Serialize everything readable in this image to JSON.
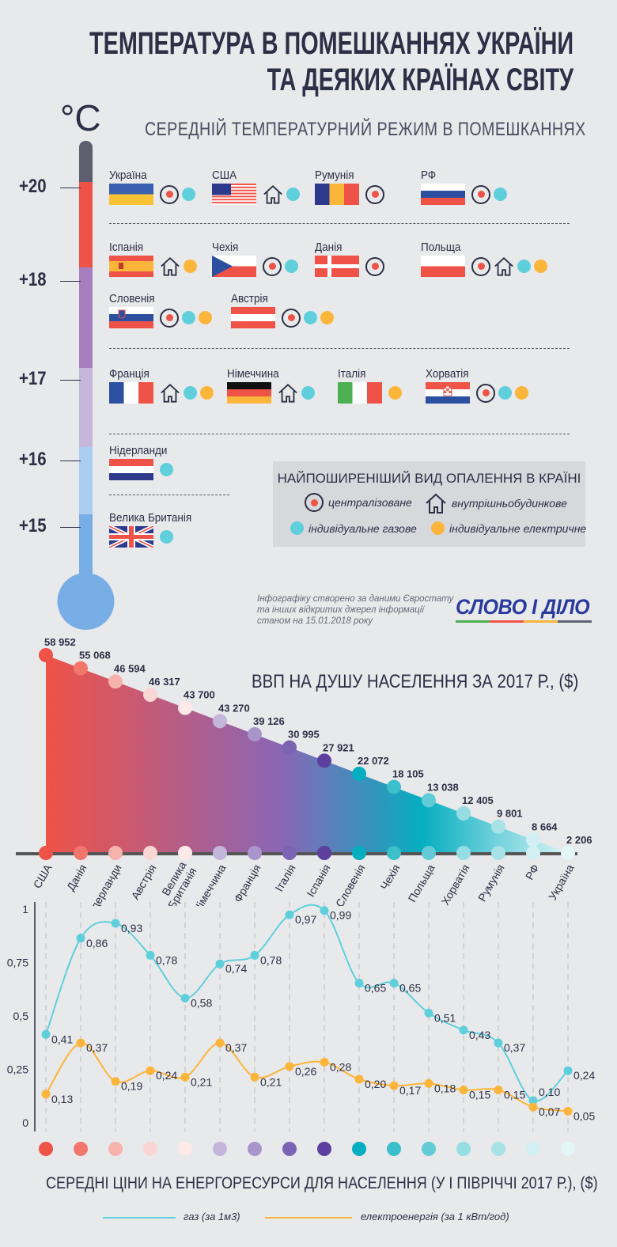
{
  "title": {
    "line1": "ТЕМПЕРАТУРА В ПОМЕШКАННЯХ УКРАЇНИ",
    "line2": "ТА ДЕЯКИХ КРАЇНАХ СВІТУ"
  },
  "unit": "°C",
  "subtitle": "СЕРЕДНІЙ ТЕМПЕРАТУРНИЙ РЕЖИМ В ПОМЕШКАННЯХ",
  "temperature_levels": [
    "+20",
    "+18",
    "+17",
    "+16",
    "+15"
  ],
  "countries": [
    {
      "name": "Україна",
      "flag": "ua",
      "level": "+20",
      "heating": [
        "central",
        "gas"
      ]
    },
    {
      "name": "США",
      "flag": "us",
      "level": "+20",
      "heating": [
        "house",
        "gas"
      ]
    },
    {
      "name": "Румунія",
      "flag": "ro",
      "level": "+20",
      "heating": [
        "central"
      ]
    },
    {
      "name": "РФ",
      "flag": "ru",
      "level": "+20",
      "heating": [
        "central",
        "gas"
      ]
    },
    {
      "name": "Іспанія",
      "flag": "es",
      "level": "+18",
      "heating": [
        "house",
        "electric"
      ]
    },
    {
      "name": "Чехія",
      "flag": "cz",
      "level": "+18",
      "heating": [
        "central",
        "gas"
      ]
    },
    {
      "name": "Данія",
      "flag": "dk",
      "level": "+18",
      "heating": [
        "central"
      ]
    },
    {
      "name": "Польща",
      "flag": "pl",
      "level": "+18",
      "heating": [
        "central",
        "house",
        "gas",
        "electric"
      ]
    },
    {
      "name": "Словенія",
      "flag": "si",
      "level": "+18",
      "heating": [
        "central",
        "gas",
        "electric"
      ]
    },
    {
      "name": "Австрія",
      "flag": "at",
      "level": "+18",
      "heating": [
        "central",
        "gas",
        "electric"
      ]
    },
    {
      "name": "Франція",
      "flag": "fr",
      "level": "+17",
      "heating": [
        "house",
        "gas",
        "electric"
      ]
    },
    {
      "name": "Німеччина",
      "flag": "de",
      "level": "+17",
      "heating": [
        "house",
        "gas"
      ]
    },
    {
      "name": "Італія",
      "flag": "it",
      "level": "+17",
      "heating": [
        "electric"
      ]
    },
    {
      "name": "Хорватія",
      "flag": "hr",
      "level": "+17",
      "heating": [
        "central",
        "gas",
        "electric"
      ]
    },
    {
      "name": "Нідерланди",
      "flag": "nl",
      "level": "+16",
      "heating": [
        "gas"
      ]
    },
    {
      "name": "Велика Британія",
      "flag": "gb",
      "level": "+15",
      "heating": [
        "gas"
      ]
    }
  ],
  "legend": {
    "title": "НАЙПОШИРЕНІШИЙ ВИД ОПАЛЕННЯ В КРАЇНІ",
    "central": "централізоване",
    "house": "внутрішньобудинкове",
    "gas": "індивідуальне газове",
    "electric": "індивідуальне електричне"
  },
  "note": {
    "line1": "Інфографіку створено за даними Євростату",
    "line2": "та інших відкритих джерел інформації",
    "line3": "станом на 15.01.2018 року"
  },
  "logo": "СЛОВО І ДІЛО",
  "colors": {
    "central": "#ef5247",
    "gas": "#5fcfdc",
    "electric": "#fbb53a",
    "navy": "#2c2f45",
    "logo": "#2a3a9c"
  },
  "chart_data": [
    {
      "type": "area",
      "title": "ВВП НА ДУШУ НАСЕЛЕННЯ ЗА 2017 Р., ($)",
      "categories": [
        "США",
        "Данія",
        "Нідерланди",
        "Австрія",
        "Велика Британія",
        "Німеччина",
        "Франція",
        "Італія",
        "Іспанія",
        "Словенія",
        "Чехія",
        "Польща",
        "Хорватія",
        "Румунія",
        "РФ",
        "Україна"
      ],
      "value_labels": [
        "58 952",
        "55 068",
        "46 594",
        "46 317",
        "43 700",
        "43 270",
        "39 126",
        "30 995",
        "27 921",
        "22 072",
        "18 105",
        "13  038",
        "12 405",
        "9 801",
        "8 664",
        "2 206"
      ],
      "values": [
        58952,
        55068,
        46594,
        46317,
        43700,
        43270,
        39126,
        30995,
        27921,
        22072,
        18105,
        13038,
        12405,
        9801,
        8664,
        2206
      ],
      "dot_colors": [
        "#ef5247",
        "#f2766b",
        "#f6b2ad",
        "#f9d6d4",
        "#fde9e8",
        "#c4b5dc",
        "#a995cc",
        "#7d63b3",
        "#5d3f9f",
        "#05aec0",
        "#3bbfca",
        "#62cbd6",
        "#95dde3",
        "#a7e2e7",
        "#d2f0f3",
        "#e4f5f7"
      ]
    },
    {
      "type": "line",
      "title": "СЕРЕДНІ ЦІНИ НА ЕНЕРГОРЕСУРСИ ДЛЯ НАСЕЛЕННЯ (У І ПІВРІЧЧІ 2017 Р.), ($)",
      "categories": [
        "США",
        "Данія",
        "Нідерланди",
        "Австрія",
        "Велика Британія",
        "Німеччина",
        "Франція",
        "Італія",
        "Іспанія",
        "Словенія",
        "Чехія",
        "Польща",
        "Хорватія",
        "Румунія",
        "РФ",
        "Україна"
      ],
      "ylim": [
        0,
        1
      ],
      "yticks": [
        "0",
        "0,25",
        "0,5",
        "0,75",
        "1"
      ],
      "grid": "vertical dashed",
      "legend_position": "bottom",
      "series": [
        {
          "name": "газ (за 1м3)",
          "color": "#5fcfdc",
          "values": [
            0.41,
            0.86,
            0.93,
            0.78,
            0.58,
            0.74,
            0.78,
            0.97,
            0.99,
            0.65,
            0.65,
            0.51,
            0.43,
            0.37,
            0.1,
            0.24
          ],
          "labels": [
            "0,41",
            "0,86",
            "0,93",
            "0,78",
            "0,58",
            "0,74",
            "0,78",
            "0,97",
            "0,99",
            "0,65",
            "0,65",
            "0,51",
            "0,43",
            "0,37",
            "0,10",
            "0,24"
          ]
        },
        {
          "name": "електроенергія (за 1 кВт/год)",
          "color": "#fbb53a",
          "values": [
            0.13,
            0.37,
            0.19,
            0.24,
            0.21,
            0.37,
            0.21,
            0.26,
            0.28,
            0.2,
            0.17,
            0.18,
            0.15,
            0.15,
            0.07,
            0.05
          ],
          "labels": [
            "0,13",
            "0,37",
            "0,19",
            "0,24",
            "0,21",
            "0,37",
            "0,21",
            "0,26",
            "0,28",
            "0,20",
            "0,17",
            "0,18",
            "0,15",
            "0,15",
            "0,07",
            "0,05"
          ]
        }
      ]
    }
  ]
}
